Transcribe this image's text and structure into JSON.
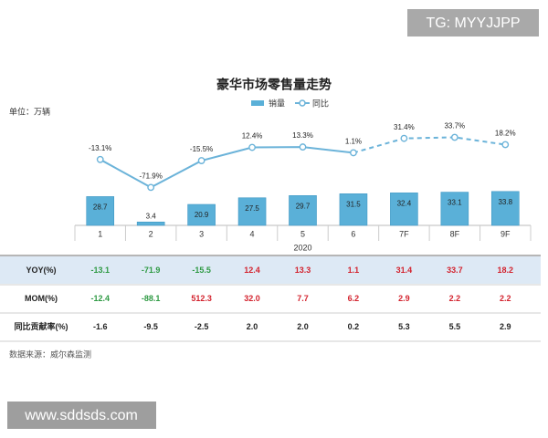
{
  "watermark_top": "TG: MYYJJPP",
  "chart_data": {
    "type": "bar",
    "title": "豪华市场零售量走势",
    "unit": "单位：万辆",
    "categories": [
      "1",
      "2",
      "3",
      "4",
      "5",
      "6",
      "7F",
      "8F",
      "9F"
    ],
    "x_label": "2020",
    "ylim": [
      0,
      40
    ],
    "y2lim": [
      -100,
      100
    ],
    "series": [
      {
        "name": "销量",
        "color": "#5ab0d8",
        "values": [
          28.7,
          3.4,
          20.9,
          27.5,
          29.7,
          31.5,
          32.4,
          33.1,
          33.8
        ]
      },
      {
        "name": "同比",
        "type": "line",
        "axis": "y2",
        "color": "#6bb3d9",
        "values": [
          -13.1,
          -71.9,
          -15.5,
          12.4,
          13.3,
          1.1,
          31.4,
          33.7,
          18.2
        ],
        "value_labels": [
          "-13.1%",
          "-71.9%",
          "-15.5%",
          "12.4%",
          "13.3%",
          "1.1%",
          "31.4%",
          "33.7%",
          "18.2%"
        ]
      }
    ]
  },
  "table": {
    "rows": [
      {
        "label": "YOY(%)",
        "background": "#dde9f5",
        "colors": {
          "negative": "#2f9a44",
          "positive": "#d3232e"
        },
        "values": [
          "-13.1",
          "-71.9",
          "-15.5",
          "12.4",
          "13.3",
          "1.1",
          "31.4",
          "33.7",
          "18.2"
        ]
      },
      {
        "label": "MOM(%)",
        "colors": {
          "negative": "#2f9a44",
          "positive": "#d3232e"
        },
        "values": [
          "-12.4",
          "-88.1",
          "512.3",
          "32.0",
          "7.7",
          "6.2",
          "2.9",
          "2.2",
          "2.2"
        ]
      },
      {
        "label": "同比贡献率(%)",
        "colors": {
          "negative": "#222222",
          "positive": "#222222"
        },
        "values": [
          "-1.6",
          "-9.5",
          "-2.5",
          "2.0",
          "2.0",
          "0.2",
          "5.3",
          "5.5",
          "2.9"
        ]
      }
    ]
  },
  "source": "数据来源：威尔森监测",
  "watermark_bottom": "www.sddsds.com"
}
